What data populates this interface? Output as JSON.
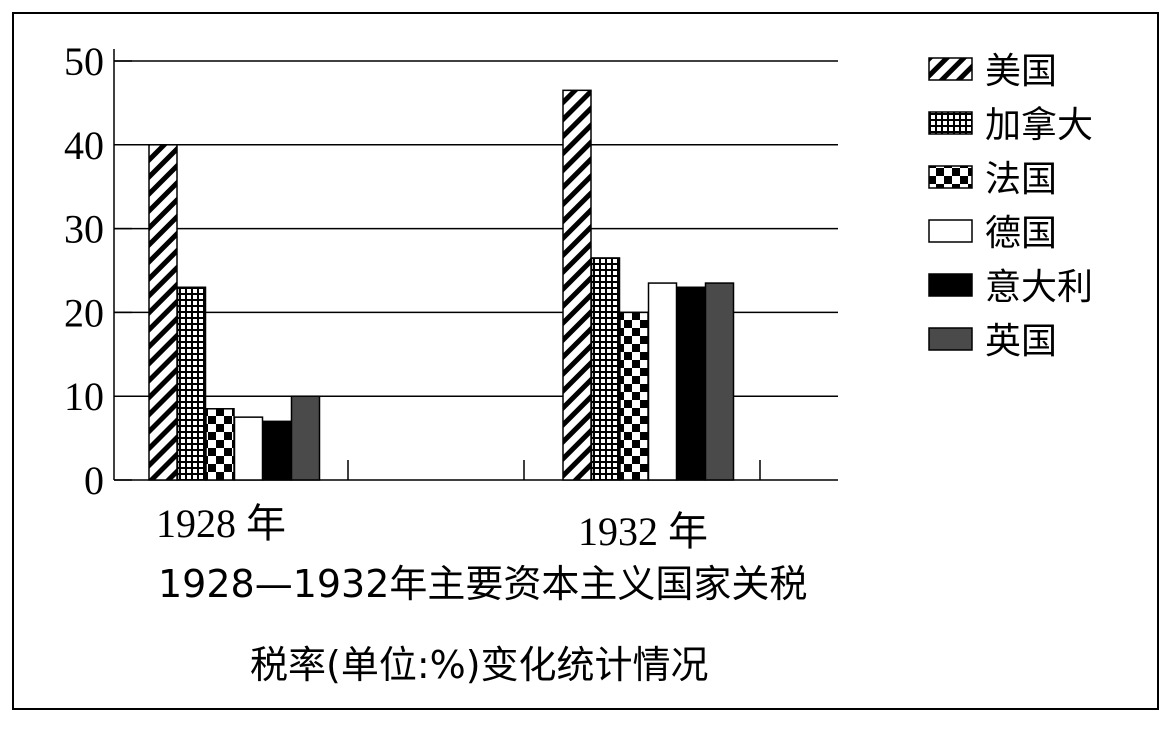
{
  "chart_data": {
    "type": "bar",
    "title": "1928—1932年主要资本主义国家关税",
    "subtitle": "税率(单位:%)变化统计情况",
    "categories": [
      "1928 年",
      "1932 年"
    ],
    "ylim": [
      0,
      50
    ],
    "yticks": [
      0,
      10,
      20,
      30,
      40,
      50
    ],
    "grid": true,
    "legend_position": "top-right",
    "series": [
      {
        "name": "美国",
        "values": [
          40,
          46.5
        ],
        "pattern": "diagonal-hatch"
      },
      {
        "name": "加拿大",
        "values": [
          23,
          26.5
        ],
        "pattern": "dotted-grid"
      },
      {
        "name": "法国",
        "values": [
          8.5,
          20
        ],
        "pattern": "checkerboard"
      },
      {
        "name": "德国",
        "values": [
          7.5,
          23.5
        ],
        "pattern": "white"
      },
      {
        "name": "意大利",
        "values": [
          7,
          23
        ],
        "pattern": "black"
      },
      {
        "name": "英国",
        "values": [
          10,
          23.5
        ],
        "pattern": "gray"
      }
    ]
  }
}
